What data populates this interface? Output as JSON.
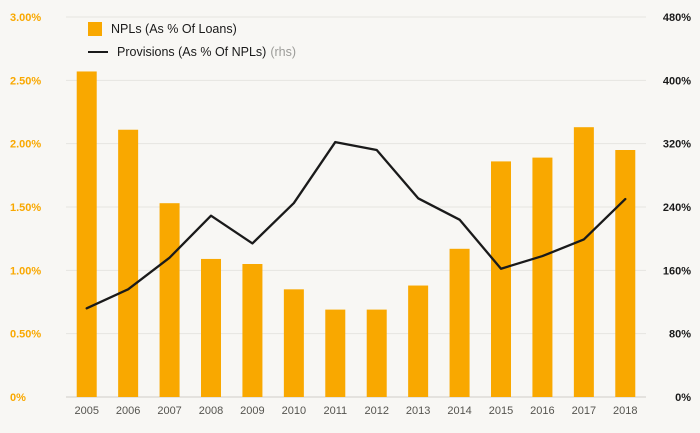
{
  "chart_data": {
    "type": "bar",
    "subtype": "combo-bar-line",
    "categories": [
      "2005",
      "2006",
      "2007",
      "2008",
      "2009",
      "2010",
      "2011",
      "2012",
      "2013",
      "2014",
      "2015",
      "2016",
      "2017",
      "2018"
    ],
    "series": [
      {
        "name": "NPLs (As % Of Loans)",
        "type": "bar",
        "axis": "left",
        "color": "#f9a800",
        "unit": "% of loans",
        "values": [
          2.57,
          2.11,
          1.53,
          1.09,
          1.05,
          0.85,
          0.69,
          0.69,
          0.88,
          1.17,
          1.86,
          1.89,
          2.13,
          1.95
        ]
      },
      {
        "name": "Provisions (As % Of NPLs)",
        "suffix": "(rhs)",
        "type": "line",
        "axis": "right",
        "color": "#1a1a1a",
        "unit": "% of NPLs",
        "values": [
          112,
          136,
          176,
          229,
          194,
          245,
          322,
          312,
          251,
          224,
          162,
          178,
          199,
          250
        ]
      }
    ],
    "left_axis": {
      "min": 0,
      "max": 3,
      "tick_labels": [
        "0%",
        "0.50%",
        "1.00%",
        "1.50%",
        "2.00%",
        "2.50%",
        "3.00%"
      ],
      "color": "#f9a800"
    },
    "right_axis": {
      "min": 0,
      "max": 480,
      "tick_labels": [
        "0%",
        "80%",
        "160%",
        "240%",
        "320%",
        "400%",
        "480%"
      ],
      "color": "#1a1a1a"
    },
    "grid": true,
    "legend_position": "top-left",
    "title": "",
    "xlabel": "",
    "ylabel": ""
  },
  "legend": {
    "bar_label": "NPLs (As % Of Loans)",
    "line_label": "Provisions (As % Of NPLs)",
    "line_suffix": "(rhs)"
  },
  "colors": {
    "bar": "#f9a800",
    "line": "#1a1a1a",
    "grid": "#e6e5e1",
    "baseline": "#cfcec9",
    "category_label": "#55544f",
    "background": "#f8f7f4",
    "rhs_note": "#9b9b98"
  }
}
